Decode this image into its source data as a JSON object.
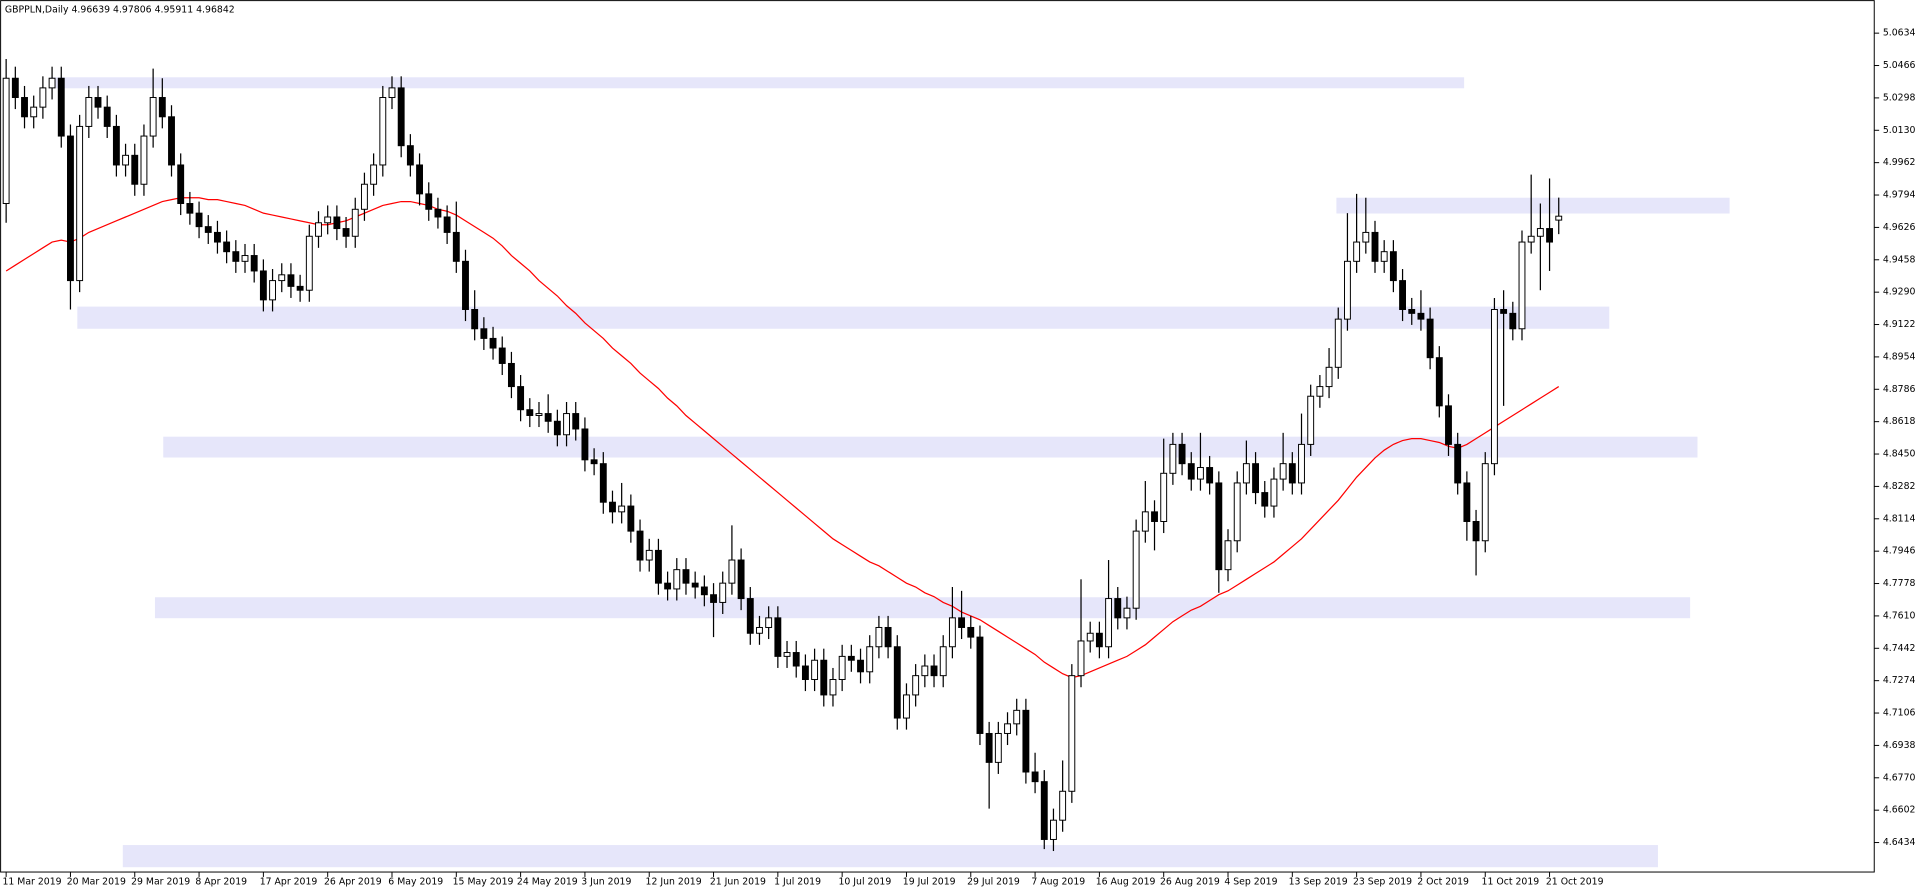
{
  "chart_data": {
    "type": "candlestick",
    "title": "GBPPLN,Daily  4.96639 4.97806 4.95911 4.96842",
    "categories": [
      "11 Mar 2019",
      null,
      null,
      null,
      null,
      null,
      null,
      "20 Mar 2019",
      null,
      null,
      null,
      null,
      null,
      null,
      "29 Mar 2019",
      null,
      null,
      null,
      null,
      null,
      null,
      "8 Apr 2019",
      null,
      null,
      null,
      null,
      null,
      null,
      "17 Apr 2019",
      null,
      null,
      null,
      null,
      null,
      null,
      "26 Apr 2019",
      null,
      null,
      null,
      null,
      null,
      null,
      "6 May 2019",
      null,
      null,
      null,
      null,
      null,
      null,
      "15 May 2019",
      null,
      null,
      null,
      null,
      null,
      null,
      "24 May 2019",
      null,
      null,
      null,
      null,
      null,
      null,
      "3 Jun 2019",
      null,
      null,
      null,
      null,
      null,
      null,
      "12 Jun 2019",
      null,
      null,
      null,
      null,
      null,
      null,
      "21 Jun 2019",
      null,
      null,
      null,
      null,
      null,
      null,
      "1 Jul 2019",
      null,
      null,
      null,
      null,
      null,
      null,
      "10 Jul 2019",
      null,
      null,
      null,
      null,
      null,
      null,
      "19 Jul 2019",
      null,
      null,
      null,
      null,
      null,
      null,
      "29 Jul 2019",
      null,
      null,
      null,
      null,
      null,
      null,
      "7 Aug 2019",
      null,
      null,
      null,
      null,
      null,
      null,
      "16 Aug 2019",
      null,
      null,
      null,
      null,
      null,
      null,
      "26 Aug 2019",
      null,
      null,
      null,
      null,
      null,
      null,
      "4 Sep 2019",
      null,
      null,
      null,
      null,
      null,
      null,
      "13 Sep 2019",
      null,
      null,
      null,
      null,
      null,
      null,
      "23 Sep 2019",
      null,
      null,
      null,
      null,
      null,
      null,
      "2 Oct 2019",
      null,
      null,
      null,
      null,
      null,
      null,
      "11 Oct 2019",
      null,
      null,
      null,
      null,
      null,
      null,
      "21 Oct 2019",
      null
    ],
    "candles": {
      "up_color": "#ffffff",
      "down_color": "#000000",
      "edge_color": "#000000",
      "open": [
        4.975,
        5.04,
        5.03,
        5.02,
        5.025,
        5.035,
        5.04,
        5.01,
        4.935,
        5.015,
        5.03,
        5.025,
        5.015,
        4.995,
        5.0,
        4.985,
        5.01,
        5.03,
        5.02,
        4.995,
        4.975,
        4.97,
        4.963,
        4.96,
        4.955,
        4.95,
        4.945,
        4.948,
        4.94,
        4.925,
        4.935,
        4.938,
        4.932,
        4.93,
        4.958,
        4.965,
        4.968,
        4.962,
        4.958,
        4.972,
        4.985,
        4.995,
        5.03,
        5.035,
        5.005,
        4.995,
        4.98,
        4.972,
        4.968,
        4.96,
        4.945,
        4.92,
        4.91,
        4.905,
        4.9,
        4.892,
        4.88,
        4.868,
        4.865,
        4.866,
        4.862,
        4.855,
        4.866,
        4.858,
        4.842,
        4.84,
        4.82,
        4.815,
        4.818,
        4.805,
        4.79,
        4.795,
        4.778,
        4.775,
        4.785,
        4.778,
        4.776,
        4.772,
        4.768,
        4.778,
        4.79,
        4.77,
        4.752,
        4.755,
        4.76,
        4.74,
        4.742,
        4.735,
        4.728,
        4.738,
        4.72,
        4.728,
        4.74,
        4.738,
        4.732,
        4.745,
        4.755,
        4.745,
        4.708,
        4.72,
        4.73,
        4.735,
        4.73,
        4.745,
        4.76,
        4.755,
        4.75,
        4.7,
        4.685,
        4.7,
        4.705,
        4.712,
        4.68,
        4.675,
        4.645,
        4.655,
        4.67,
        4.73,
        4.748,
        4.752,
        4.745,
        4.77,
        4.76,
        4.765,
        4.805,
        4.815,
        4.81,
        4.835,
        4.85,
        4.84,
        4.832,
        4.838,
        4.83,
        4.785,
        4.8,
        4.83,
        4.84,
        4.825,
        4.818,
        4.832,
        4.84,
        4.83,
        4.85,
        4.875,
        4.88,
        4.89,
        4.915,
        4.945,
        4.955,
        4.96,
        4.945,
        4.95,
        4.935,
        4.92,
        4.918,
        4.915,
        4.895,
        4.87,
        4.85,
        4.83,
        4.81,
        4.8,
        4.84,
        4.92,
        4.918,
        4.91,
        4.955,
        4.958,
        4.962,
        4.96639
      ],
      "high": [
        5.05,
        5.046,
        5.036,
        5.031,
        5.041,
        5.046,
        5.046,
        5.016,
        5.021,
        5.036,
        5.036,
        5.031,
        5.021,
        5.006,
        5.006,
        5.016,
        5.045,
        5.04,
        5.026,
        5.001,
        4.981,
        4.976,
        4.969,
        4.966,
        4.961,
        4.956,
        4.954,
        4.954,
        4.946,
        4.941,
        4.944,
        4.944,
        4.938,
        4.964,
        4.971,
        4.974,
        4.974,
        4.968,
        4.978,
        4.991,
        5.001,
        5.036,
        5.041,
        5.041,
        5.011,
        5.001,
        4.986,
        4.978,
        4.974,
        4.976,
        4.951,
        4.93,
        4.916,
        4.911,
        4.906,
        4.898,
        4.886,
        4.874,
        4.872,
        4.876,
        4.868,
        4.872,
        4.872,
        4.864,
        4.848,
        4.846,
        4.826,
        4.83,
        4.824,
        4.811,
        4.801,
        4.801,
        4.784,
        4.791,
        4.791,
        4.784,
        4.782,
        4.778,
        4.784,
        4.808,
        4.796,
        4.776,
        4.761,
        4.766,
        4.766,
        4.748,
        4.748,
        4.741,
        4.744,
        4.744,
        4.734,
        4.746,
        4.746,
        4.744,
        4.751,
        4.761,
        4.761,
        4.751,
        4.726,
        4.736,
        4.741,
        4.741,
        4.751,
        4.776,
        4.774,
        4.761,
        4.756,
        4.706,
        4.706,
        4.711,
        4.718,
        4.718,
        4.69,
        4.681,
        4.661,
        4.686,
        4.736,
        4.78,
        4.758,
        4.758,
        4.79,
        4.776,
        4.771,
        4.811,
        4.831,
        4.821,
        4.853,
        4.856,
        4.856,
        4.846,
        4.856,
        4.844,
        4.836,
        4.806,
        4.836,
        4.852,
        4.846,
        4.831,
        4.838,
        4.856,
        4.846,
        4.866,
        4.881,
        4.886,
        4.9,
        4.921,
        4.97,
        4.98,
        4.978,
        4.966,
        4.956,
        4.956,
        4.941,
        4.926,
        4.93,
        4.921,
        4.901,
        4.876,
        4.856,
        4.836,
        4.816,
        4.846,
        4.926,
        4.93,
        4.924,
        4.961,
        4.99,
        4.975,
        4.988,
        4.97806
      ],
      "low": [
        4.965,
        5.024,
        5.014,
        5.014,
        5.019,
        5.029,
        5.004,
        4.92,
        4.929,
        5.009,
        5.019,
        5.009,
        4.989,
        4.989,
        4.979,
        4.979,
        5.004,
        5.014,
        4.989,
        4.969,
        4.964,
        4.957,
        4.954,
        4.949,
        4.944,
        4.939,
        4.939,
        4.934,
        4.919,
        4.919,
        4.929,
        4.926,
        4.924,
        4.924,
        4.952,
        4.959,
        4.956,
        4.952,
        4.952,
        4.966,
        4.979,
        4.989,
        5.024,
        4.999,
        4.989,
        4.974,
        4.966,
        4.962,
        4.954,
        4.939,
        4.914,
        4.904,
        4.899,
        4.894,
        4.886,
        4.874,
        4.862,
        4.859,
        4.859,
        4.856,
        4.849,
        4.849,
        4.852,
        4.836,
        4.834,
        4.814,
        4.809,
        4.809,
        4.799,
        4.784,
        4.784,
        4.772,
        4.769,
        4.769,
        4.772,
        4.77,
        4.766,
        4.75,
        4.762,
        4.772,
        4.764,
        4.746,
        4.746,
        4.749,
        4.734,
        4.734,
        4.729,
        4.722,
        4.722,
        4.714,
        4.714,
        4.722,
        4.732,
        4.726,
        4.726,
        4.739,
        4.739,
        4.702,
        4.702,
        4.714,
        4.724,
        4.724,
        4.724,
        4.739,
        4.749,
        4.744,
        4.694,
        4.661,
        4.679,
        4.694,
        4.699,
        4.674,
        4.669,
        4.64,
        4.639,
        4.649,
        4.664,
        4.724,
        4.742,
        4.739,
        4.739,
        4.754,
        4.754,
        4.759,
        4.799,
        4.795,
        4.804,
        4.829,
        4.834,
        4.826,
        4.826,
        4.824,
        4.773,
        4.779,
        4.794,
        4.824,
        4.819,
        4.812,
        4.812,
        4.826,
        4.824,
        4.824,
        4.844,
        4.869,
        4.874,
        4.884,
        4.909,
        4.939,
        4.949,
        4.939,
        4.939,
        4.929,
        4.914,
        4.912,
        4.909,
        4.889,
        4.864,
        4.844,
        4.824,
        4.8,
        4.782,
        4.794,
        4.834,
        4.87,
        4.904,
        4.904,
        4.949,
        4.93,
        4.94,
        4.95911
      ],
      "close": [
        5.04,
        5.03,
        5.02,
        5.025,
        5.035,
        5.04,
        5.01,
        4.935,
        5.015,
        5.03,
        5.025,
        5.015,
        4.995,
        5.0,
        4.985,
        5.01,
        5.03,
        5.02,
        4.995,
        4.975,
        4.97,
        4.963,
        4.96,
        4.955,
        4.95,
        4.945,
        4.948,
        4.94,
        4.925,
        4.935,
        4.938,
        4.932,
        4.93,
        4.958,
        4.965,
        4.968,
        4.962,
        4.958,
        4.972,
        4.985,
        4.995,
        5.03,
        5.035,
        5.005,
        4.995,
        4.98,
        4.972,
        4.968,
        4.96,
        4.945,
        4.92,
        4.91,
        4.905,
        4.9,
        4.892,
        4.88,
        4.868,
        4.865,
        4.866,
        4.862,
        4.855,
        4.866,
        4.858,
        4.842,
        4.84,
        4.82,
        4.815,
        4.818,
        4.805,
        4.79,
        4.795,
        4.778,
        4.775,
        4.785,
        4.778,
        4.776,
        4.772,
        4.768,
        4.778,
        4.79,
        4.77,
        4.752,
        4.755,
        4.76,
        4.74,
        4.742,
        4.735,
        4.728,
        4.738,
        4.72,
        4.728,
        4.74,
        4.738,
        4.732,
        4.745,
        4.755,
        4.745,
        4.708,
        4.72,
        4.73,
        4.735,
        4.73,
        4.745,
        4.76,
        4.755,
        4.75,
        4.7,
        4.685,
        4.7,
        4.705,
        4.712,
        4.68,
        4.675,
        4.645,
        4.655,
        4.67,
        4.73,
        4.748,
        4.752,
        4.745,
        4.77,
        4.76,
        4.765,
        4.805,
        4.815,
        4.81,
        4.835,
        4.85,
        4.84,
        4.832,
        4.838,
        4.83,
        4.785,
        4.8,
        4.83,
        4.84,
        4.825,
        4.818,
        4.832,
        4.84,
        4.83,
        4.85,
        4.875,
        4.88,
        4.89,
        4.915,
        4.945,
        4.955,
        4.96,
        4.945,
        4.95,
        4.935,
        4.92,
        4.918,
        4.915,
        4.895,
        4.87,
        4.85,
        4.83,
        4.81,
        4.8,
        4.84,
        4.92,
        4.918,
        4.91,
        4.955,
        4.958,
        4.962,
        4.955,
        4.96842
      ]
    },
    "moving_average": {
      "color": "#ff0000",
      "values": [
        4.94,
        4.943,
        4.946,
        4.949,
        4.952,
        4.955,
        4.956,
        4.955,
        4.957,
        4.96,
        4.962,
        4.964,
        4.966,
        4.968,
        4.97,
        4.972,
        4.974,
        4.976,
        4.977,
        4.978,
        4.978,
        4.978,
        4.977,
        4.977,
        4.976,
        4.975,
        4.974,
        4.972,
        4.97,
        4.969,
        4.968,
        4.967,
        4.966,
        4.965,
        4.964,
        4.964,
        4.965,
        4.966,
        4.968,
        4.97,
        4.972,
        4.974,
        4.975,
        4.976,
        4.976,
        4.975,
        4.974,
        4.972,
        4.971,
        4.969,
        4.966,
        4.963,
        4.96,
        4.957,
        4.953,
        4.948,
        4.944,
        4.94,
        4.935,
        4.931,
        4.927,
        4.922,
        4.918,
        4.913,
        4.909,
        4.905,
        4.9,
        4.896,
        4.892,
        4.887,
        4.883,
        4.879,
        4.874,
        4.87,
        4.865,
        4.861,
        4.857,
        4.853,
        4.849,
        4.845,
        4.841,
        4.837,
        4.833,
        4.829,
        4.825,
        4.821,
        4.817,
        4.813,
        4.809,
        4.805,
        4.801,
        4.798,
        4.795,
        4.792,
        4.789,
        4.787,
        4.784,
        4.781,
        4.778,
        4.776,
        4.773,
        4.771,
        4.768,
        4.766,
        4.763,
        4.761,
        4.759,
        4.756,
        4.753,
        4.75,
        4.747,
        4.744,
        4.741,
        4.737,
        4.734,
        4.731,
        4.729,
        4.73,
        4.732,
        4.734,
        4.736,
        4.738,
        4.74,
        4.743,
        4.746,
        4.75,
        4.754,
        4.758,
        4.761,
        4.764,
        4.766,
        4.769,
        4.772,
        4.774,
        4.777,
        4.78,
        4.783,
        4.786,
        4.789,
        4.793,
        4.797,
        4.801,
        4.806,
        4.811,
        4.816,
        4.821,
        4.827,
        4.833,
        4.838,
        4.843,
        4.847,
        4.85,
        4.852,
        4.853,
        4.853,
        4.852,
        4.851,
        4.849,
        4.848,
        4.85,
        4.853,
        4.856,
        4.859,
        4.862,
        4.865,
        4.868,
        4.871,
        4.874,
        4.877,
        4.88
      ]
    },
    "zones": {
      "color": "#e6e6fa",
      "items": [
        {
          "ylim": [
            5.0348,
            5.0405
          ],
          "xlim": [
            4.7,
            158.7
          ]
        },
        {
          "ylim": [
            4.9698,
            4.978
          ],
          "xlim": [
            144.8,
            187.6
          ]
        },
        {
          "ylim": [
            4.91,
            4.9215
          ],
          "xlim": [
            7.75,
            174.5
          ]
        },
        {
          "ylim": [
            4.8432,
            4.854
          ],
          "xlim": [
            17.1,
            184.1
          ]
        },
        {
          "ylim": [
            4.7598,
            4.7707
          ],
          "xlim": [
            16.2,
            183.3
          ]
        },
        {
          "ylim": [
            4.6306,
            4.6421
          ],
          "xlim": [
            12.7,
            179.8
          ]
        }
      ]
    },
    "ylim": [
      4.6281,
      5.0806
    ],
    "yticks": [
      {
        "value": 5.0634,
        "label": "5.06340"
      },
      {
        "value": 5.0466,
        "label": "5.04660"
      },
      {
        "value": 5.0298,
        "label": "5.02980"
      },
      {
        "value": 5.013,
        "label": "5.01300"
      },
      {
        "value": 4.9962,
        "label": "4.99620"
      },
      {
        "value": 4.9794,
        "label": "4.97940"
      },
      {
        "value": 4.9626,
        "label": "4.96260"
      },
      {
        "value": 4.9458,
        "label": "4.94580"
      },
      {
        "value": 4.929,
        "label": "4.92900"
      },
      {
        "value": 4.9122,
        "label": "4.91220"
      },
      {
        "value": 4.8954,
        "label": "4.89540"
      },
      {
        "value": 4.8786,
        "label": "4.87860"
      },
      {
        "value": 4.8618,
        "label": "4.86180"
      },
      {
        "value": 4.845,
        "label": "4.84500"
      },
      {
        "value": 4.8282,
        "label": "4.82820"
      },
      {
        "value": 4.8114,
        "label": "4.81140"
      },
      {
        "value": 4.7946,
        "label": "4.79460"
      },
      {
        "value": 4.7778,
        "label": "4.77780"
      },
      {
        "value": 4.761,
        "label": "4.76100"
      },
      {
        "value": 4.7442,
        "label": "4.74420"
      },
      {
        "value": 4.7274,
        "label": "4.72740"
      },
      {
        "value": 4.7106,
        "label": "4.71060"
      },
      {
        "value": 4.6938,
        "label": "4.69380"
      },
      {
        "value": 4.677,
        "label": "4.67700"
      },
      {
        "value": 4.6602,
        "label": "4.66020"
      },
      {
        "value": 4.6434,
        "label": "4.64340"
      }
    ],
    "grid": false
  }
}
